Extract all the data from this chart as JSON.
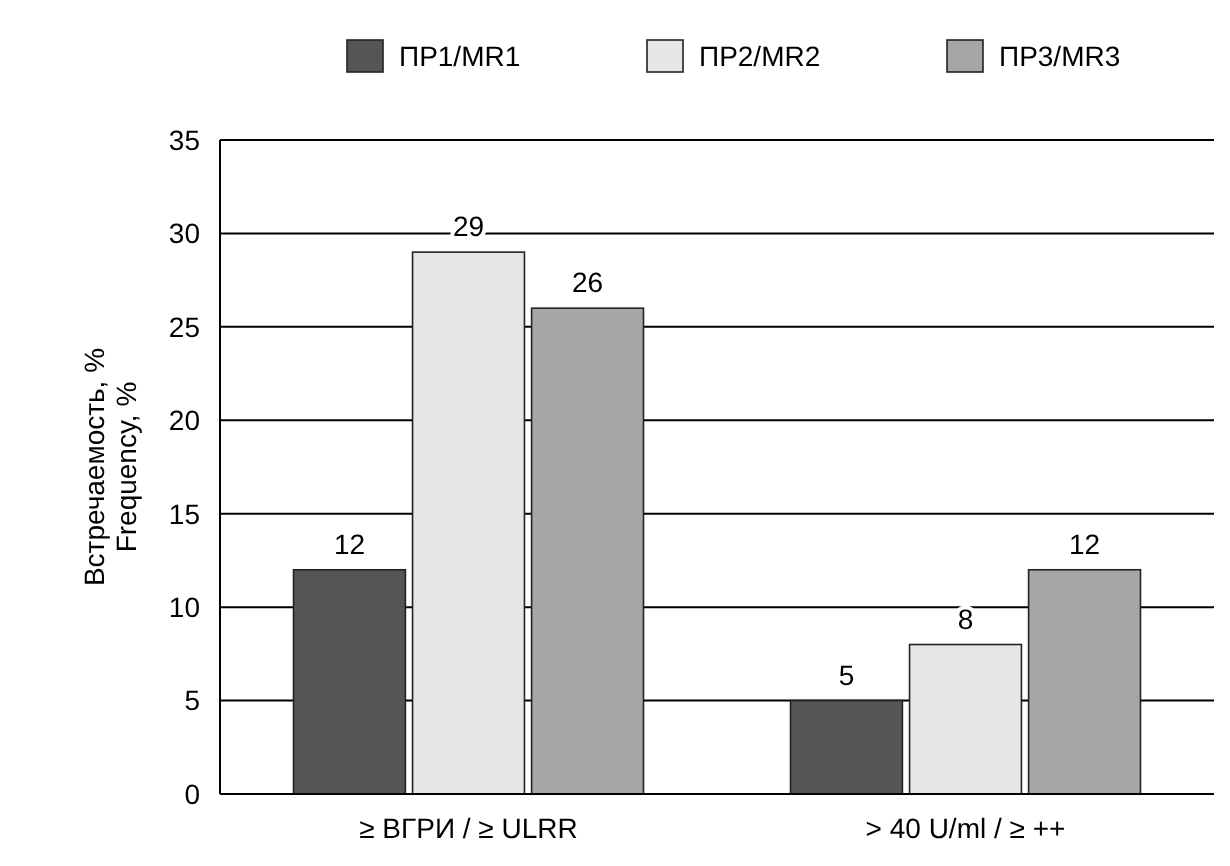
{
  "chart_data": {
    "type": "bar",
    "ylabel": "Встречаемость, %\nFrequency, %",
    "categories": [
      "≥ ВГРИ / ≥ ULRR",
      "> 40 U/ml / ≥ ++"
    ],
    "series": [
      {
        "name": "ПР1/MR1",
        "color": "#555555",
        "values": [
          12,
          5
        ]
      },
      {
        "name": "ПР2/MR2",
        "color": "#e6e6e6",
        "values": [
          29,
          8
        ]
      },
      {
        "name": "ПР3/MR3",
        "color": "#a6a6a6",
        "values": [
          26,
          12
        ]
      }
    ],
    "ylim": [
      0,
      35
    ],
    "yticks": [
      0,
      5,
      10,
      15,
      20,
      25,
      30,
      35
    ],
    "grid": "y",
    "legend": "top",
    "data_labels": true
  }
}
